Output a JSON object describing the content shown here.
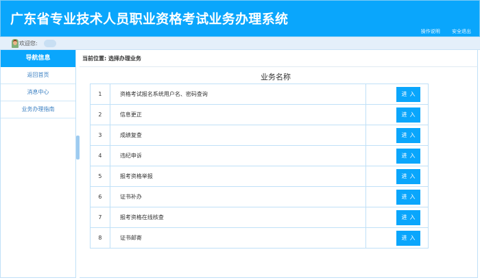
{
  "header": {
    "title": "广东省专业技术人员职业资格考试业务办理系统",
    "links": [
      "操作说明",
      "安全退出"
    ]
  },
  "welcome": {
    "label": "欢迎您:"
  },
  "sidebar": {
    "title": "导航信息",
    "items": [
      "返回首页",
      "消息中心",
      "业务办理指南"
    ]
  },
  "breadcrumb": "当前位置: 选择办理业务",
  "table": {
    "title": "业务名称",
    "button_label": "进入",
    "rows": [
      {
        "num": "1",
        "name": "资格考试报名系统用户名、密码查询"
      },
      {
        "num": "2",
        "name": "信息更正"
      },
      {
        "num": "3",
        "name": "成绩复查"
      },
      {
        "num": "4",
        "name": "违纪申诉"
      },
      {
        "num": "5",
        "name": "报考资格举报"
      },
      {
        "num": "6",
        "name": "证书补办"
      },
      {
        "num": "7",
        "name": "报考资格在线核查"
      },
      {
        "num": "8",
        "name": "证书邮寄"
      }
    ]
  },
  "colors": {
    "primary": "#0aa6fc",
    "border": "#bfe0f7"
  }
}
